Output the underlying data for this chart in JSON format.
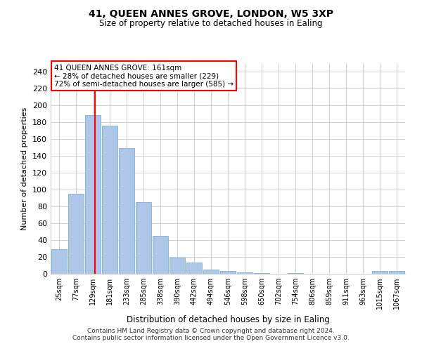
{
  "title1": "41, QUEEN ANNES GROVE, LONDON, W5 3XP",
  "title2": "Size of property relative to detached houses in Ealing",
  "xlabel": "Distribution of detached houses by size in Ealing",
  "ylabel": "Number of detached properties",
  "bar_labels": [
    "25sqm",
    "77sqm",
    "129sqm",
    "181sqm",
    "233sqm",
    "285sqm",
    "338sqm",
    "390sqm",
    "442sqm",
    "494sqm",
    "546sqm",
    "598sqm",
    "650sqm",
    "702sqm",
    "754sqm",
    "806sqm",
    "859sqm",
    "911sqm",
    "963sqm",
    "1015sqm",
    "1067sqm"
  ],
  "bar_values": [
    29,
    95,
    188,
    176,
    149,
    85,
    45,
    19,
    13,
    5,
    3,
    2,
    1,
    0,
    1,
    0,
    0,
    0,
    0,
    3,
    3
  ],
  "bar_color": "#aec6e8",
  "bar_edge_color": "#7db0d8",
  "annotation_text": "41 QUEEN ANNES GROVE: 161sqm\n← 28% of detached houses are smaller (229)\n72% of semi-detached houses are larger (585) →",
  "annotation_box_color": "white",
  "annotation_box_edge_color": "red",
  "ylim": [
    0,
    250
  ],
  "yticks": [
    0,
    20,
    40,
    60,
    80,
    100,
    120,
    140,
    160,
    180,
    200,
    220,
    240
  ],
  "grid_color": "#d0d0d0",
  "footer1": "Contains HM Land Registry data © Crown copyright and database right 2024.",
  "footer2": "Contains public sector information licensed under the Open Government Licence v3.0."
}
